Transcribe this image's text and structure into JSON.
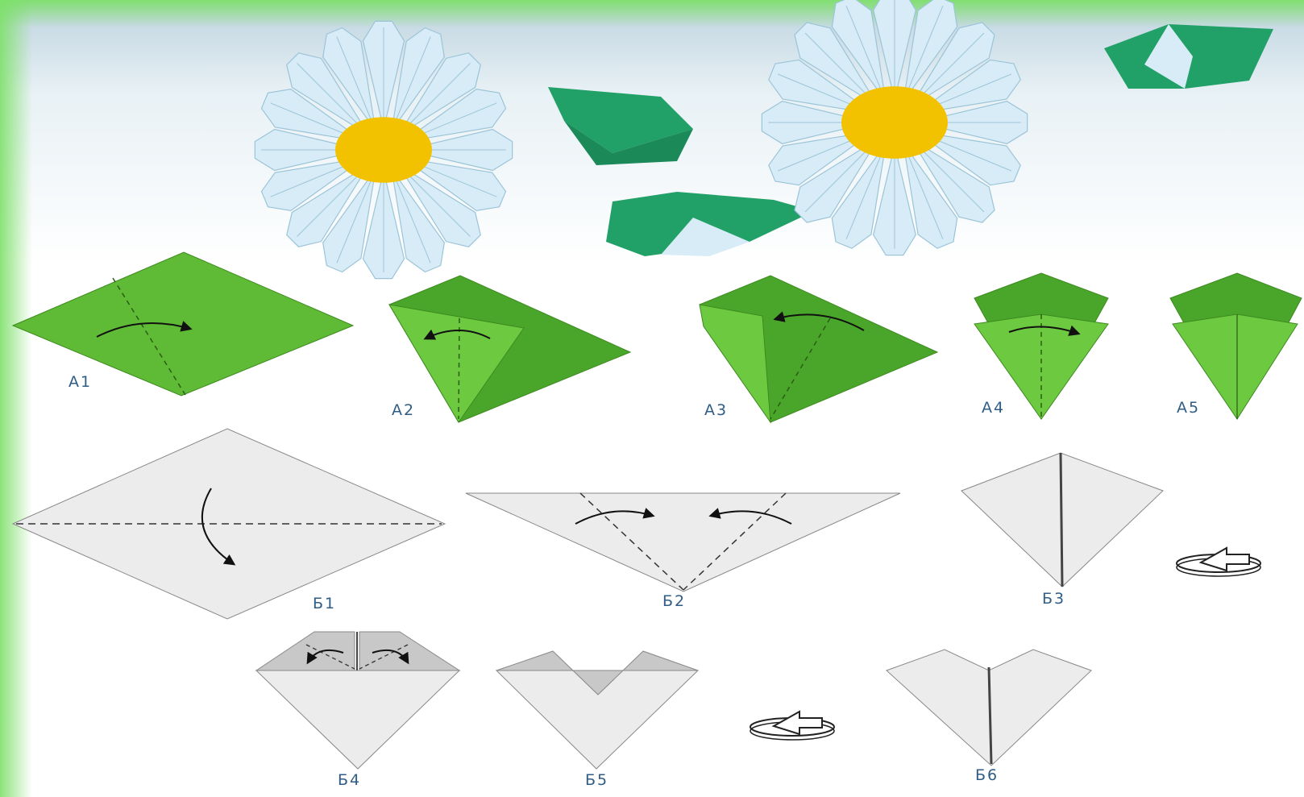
{
  "colors": {
    "frame_green": "#7ee06a",
    "leaf_green": "#5fba35",
    "leaf_green_dark": "#3f9a22",
    "stem_green": "#21a067",
    "petal_blue": "#d7ecf6",
    "petal_edge": "#9cc4d8",
    "flower_center": "#f2c200",
    "paper_gray": "#ececec",
    "paper_gray_dark": "#c8c8c8",
    "label_blue": "#2f5d86"
  },
  "labels": {
    "a1": "A1",
    "a2": "A2",
    "a3": "A3",
    "a4": "A4",
    "a5": "A5",
    "b1": "Б1",
    "b2": "Б2",
    "b3": "Б3",
    "b4": "Б4",
    "b5": "Б5",
    "b6": "Б6"
  },
  "icons": {
    "fold_arrow": "curved-arrow-icon",
    "turn_over": "turn-over-icon"
  }
}
